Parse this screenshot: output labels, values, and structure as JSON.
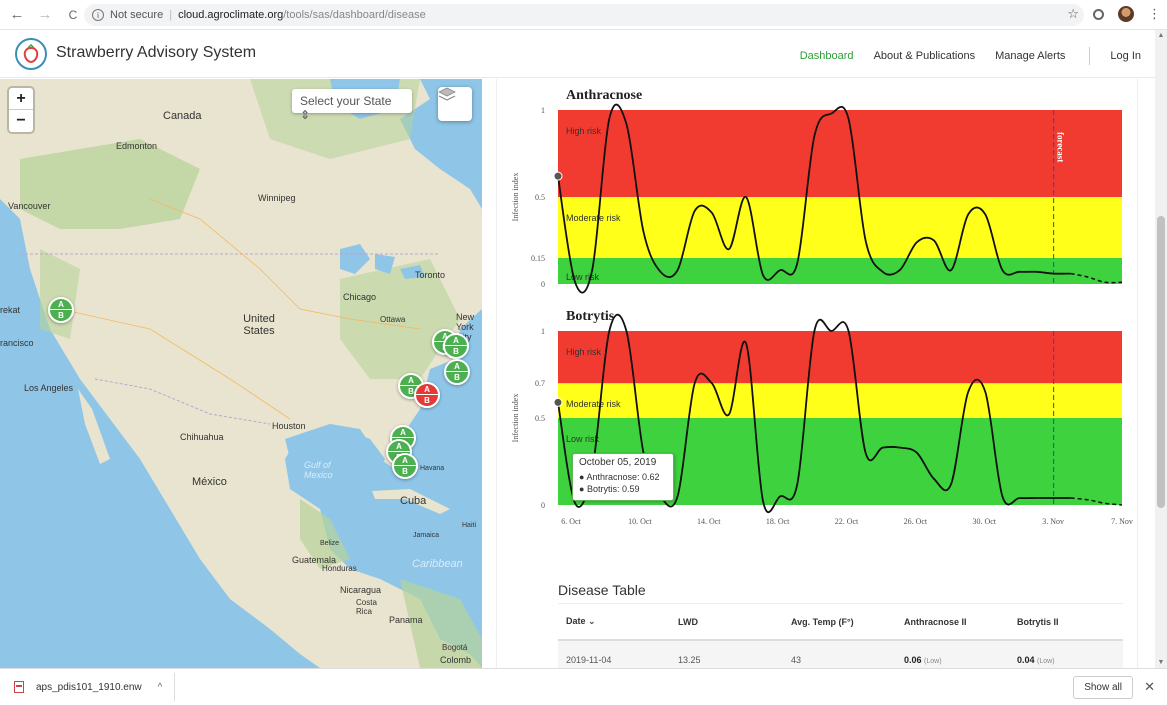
{
  "browser": {
    "back": "←",
    "forward": "→",
    "reload": "C",
    "security": "Not secure",
    "separator": "|",
    "host": "cloud.agroclimate.org",
    "path": "/tools/sas/dashboard/disease",
    "star": "☆"
  },
  "app": {
    "title": "Strawberry Advisory System",
    "nav": [
      "Dashboard",
      "About & Publications",
      "Manage Alerts",
      "Log In"
    ],
    "active_color": "#2e9e3a"
  },
  "map": {
    "zoom_in": "+",
    "zoom_out": "−",
    "state_select": "Select your State ⇕",
    "labels": [
      "Canada",
      "Edmonton",
      "Vancouver",
      "Winnipeg",
      "United States",
      "Chicago",
      "Toronto",
      "New York City",
      "Los Angeles",
      "Chihuahua",
      "Houston",
      "México",
      "Gulf of Mexico",
      "Cuba",
      "Jamaica",
      "Guatemala",
      "Honduras",
      "Nicaragua",
      "Costa Rica",
      "Panama",
      "Caribbean",
      "Bogotá",
      "Colomb",
      "Havana",
      "Haiti",
      "Belize",
      "rekat",
      "rancisco",
      "Ottawa"
    ],
    "marker_a": "A",
    "marker_b": "B",
    "colors": {
      "water": "#8fc6e8",
      "land": "#e9e4cf",
      "forest": "#b7d39a",
      "marker_green": "#4caf50",
      "marker_red": "#e53935"
    }
  },
  "charts": {
    "forecast_label": "forecast",
    "x_ticks": [
      "6. Oct",
      "10. Oct",
      "14. Oct",
      "18. Oct",
      "22. Oct",
      "26. Oct",
      "30. Oct",
      "3. Nov",
      "7. Nov"
    ],
    "y_axis_title": "Infection index",
    "risk_colors": {
      "high": "#f23b30",
      "moderate": "#ffff1a",
      "low": "#3ed23e"
    }
  },
  "chart_data": [
    {
      "type": "line",
      "title": "Anthracnose",
      "ylabel": "Infection index",
      "ylim": [
        0,
        1
      ],
      "yticks": [
        0,
        0.15,
        0.5,
        1
      ],
      "y_tick_labels": [
        "0",
        "0.15",
        "0.5",
        "1"
      ],
      "bands": [
        {
          "label": "Low risk",
          "from": 0,
          "to": 0.15
        },
        {
          "label": "Moderate risk",
          "from": 0.15,
          "to": 0.5
        },
        {
          "label": "High risk",
          "from": 0.5,
          "to": 1
        }
      ],
      "x_start": "2019-10-05",
      "x": [
        "2019-10-05",
        "2019-10-06",
        "2019-10-07",
        "2019-10-08",
        "2019-10-09",
        "2019-10-10",
        "2019-10-11",
        "2019-10-12",
        "2019-10-13",
        "2019-10-14",
        "2019-10-15",
        "2019-10-16",
        "2019-10-17",
        "2019-10-18",
        "2019-10-19",
        "2019-10-20",
        "2019-10-21",
        "2019-10-22",
        "2019-10-23",
        "2019-10-24",
        "2019-10-25",
        "2019-10-26",
        "2019-10-27",
        "2019-10-28",
        "2019-10-29",
        "2019-10-30",
        "2019-10-31",
        "2019-11-01",
        "2019-11-02",
        "2019-11-03",
        "2019-11-04"
      ],
      "values": [
        0.62,
        0.01,
        0.08,
        0.95,
        0.92,
        0.3,
        0.07,
        0.08,
        0.42,
        0.41,
        0.2,
        0.5,
        0.05,
        0.08,
        0.12,
        0.85,
        0.98,
        0.95,
        0.25,
        0.07,
        0.08,
        0.24,
        0.25,
        0.08,
        0.4,
        0.4,
        0.08,
        0.07,
        0.07,
        0.06,
        0.06
      ],
      "forecast_x": [
        "2019-11-04",
        "2019-11-05",
        "2019-11-06",
        "2019-11-07"
      ],
      "forecast_values": [
        0.06,
        0.04,
        0.01,
        0.01
      ],
      "forecast_start": "2019-11-03"
    },
    {
      "type": "line",
      "title": "Botrytis",
      "ylabel": "Infection index",
      "ylim": [
        0,
        1
      ],
      "yticks": [
        0,
        0.5,
        0.7,
        1
      ],
      "y_tick_labels": [
        "0",
        "0.5",
        "0.7",
        "1"
      ],
      "bands": [
        {
          "label": "Low risk",
          "from": 0,
          "to": 0.5
        },
        {
          "label": "Moderate risk",
          "from": 0.5,
          "to": 0.7
        },
        {
          "label": "High risk",
          "from": 0.7,
          "to": 1
        }
      ],
      "x": [
        "2019-10-05",
        "2019-10-06",
        "2019-10-07",
        "2019-10-08",
        "2019-10-09",
        "2019-10-10",
        "2019-10-11",
        "2019-10-12",
        "2019-10-13",
        "2019-10-14",
        "2019-10-15",
        "2019-10-16",
        "2019-10-17",
        "2019-10-18",
        "2019-10-19",
        "2019-10-20",
        "2019-10-21",
        "2019-10-22",
        "2019-10-23",
        "2019-10-24",
        "2019-10-25",
        "2019-10-26",
        "2019-10-27",
        "2019-10-28",
        "2019-10-29",
        "2019-10-30",
        "2019-10-31",
        "2019-11-01",
        "2019-11-02",
        "2019-11-03",
        "2019-11-04"
      ],
      "values": [
        0.59,
        0.01,
        0.2,
        1.0,
        1.0,
        0.3,
        0.05,
        0.05,
        0.7,
        0.7,
        0.52,
        0.93,
        0.02,
        0.05,
        0.12,
        1.0,
        1.0,
        1.0,
        0.3,
        0.33,
        0.33,
        0.3,
        0.15,
        0.12,
        0.65,
        0.65,
        0.05,
        0.04,
        0.04,
        0.04,
        0.04
      ],
      "forecast_x": [
        "2019-11-04",
        "2019-11-05",
        "2019-11-06",
        "2019-11-07"
      ],
      "forecast_values": [
        0.04,
        0.03,
        0.01,
        0.0
      ],
      "forecast_start": "2019-11-03"
    }
  ],
  "tooltip": {
    "date": "October 05, 2019",
    "rows": [
      "Anthracnose: 0.62",
      "Botrytis: 0.59"
    ]
  },
  "disease_table": {
    "title": "Disease Table",
    "columns": [
      "Date ⌄",
      "LWD",
      "Avg. Temp (F°)",
      "Anthracnose II",
      "Botrytis II"
    ],
    "rows": [
      {
        "date": "2019-11-04",
        "lwd": "13.25",
        "temp": "43",
        "anth": "0.06",
        "anth_risk": "(Low)",
        "bot": "0.04",
        "bot_risk": "(Low)"
      }
    ]
  },
  "download": {
    "file": "aps_pdis101_1910.enw",
    "caret": "^",
    "show_all": "Show all",
    "close": "✕"
  }
}
